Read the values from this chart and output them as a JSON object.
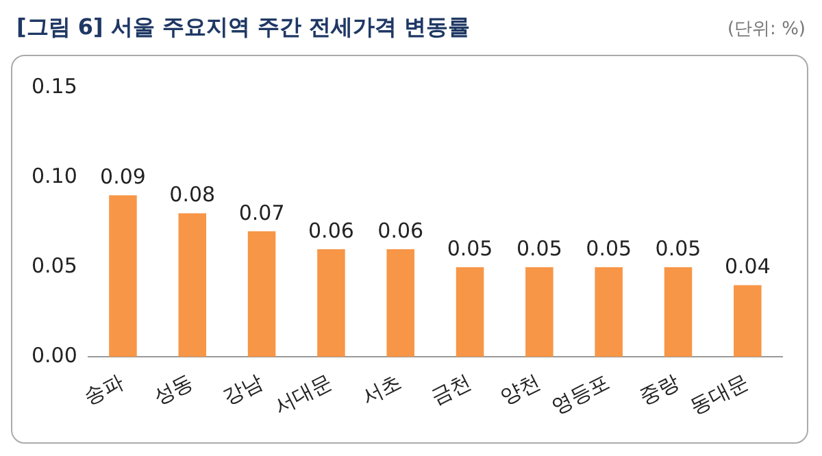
{
  "chart_data": {
    "type": "bar",
    "title": "[그림 6] 서울 주요지역 주간 전세가격 변동률",
    "annotations": [
      "(단위: %)"
    ],
    "categories": [
      "송파",
      "성동",
      "강남",
      "서대문",
      "서초",
      "금천",
      "양천",
      "영등포",
      "중랑",
      "동대문"
    ],
    "values": [
      0.09,
      0.08,
      0.07,
      0.06,
      0.06,
      0.05,
      0.05,
      0.05,
      0.05,
      0.04
    ],
    "color": "#f79646",
    "ylim": [
      0,
      0.15
    ],
    "yticks": [
      {
        "value": 0,
        "label": "0.00"
      },
      {
        "value": 0.05,
        "label": "0.05"
      },
      {
        "value": 0.1,
        "label": "0.10"
      },
      {
        "value": 0.15,
        "label": "0.15"
      }
    ],
    "data_labels": true,
    "grid": false,
    "legend": false
  }
}
